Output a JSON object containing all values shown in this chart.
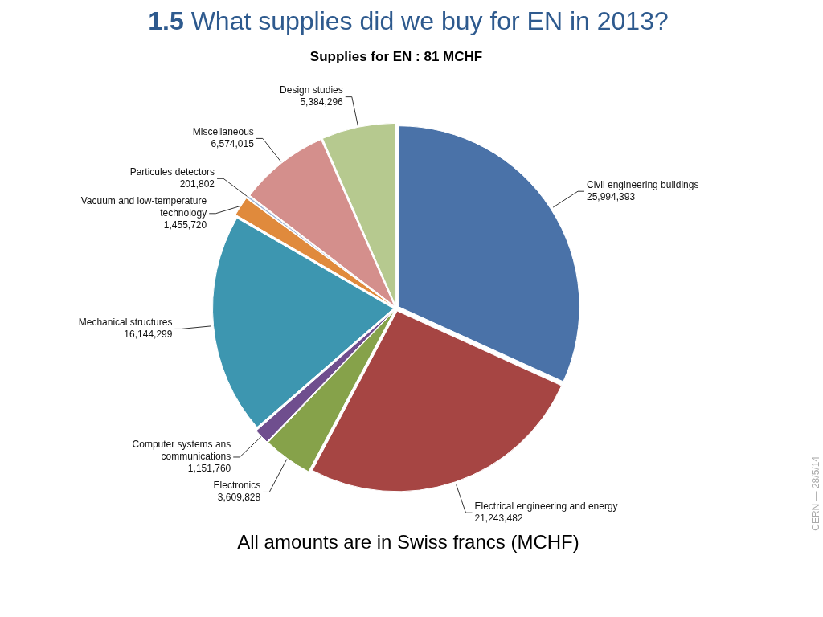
{
  "chart_data": {
    "type": "pie",
    "title": "1.5 What supplies did we buy for EN in 2013?",
    "subtitle": "Supplies for EN : 81 MCHF",
    "categories": [
      "Civil engineering buildings",
      "Electrical engineering and energy",
      "Electronics",
      "Computer systems ans communications",
      "Mechanical structures",
      "Vacuum and low-temperature technology",
      "Particules detectors",
      "Miscellaneous",
      "Design studies"
    ],
    "values": [
      25994393,
      21243482,
      3609828,
      1151760,
      16144299,
      1455720,
      201802,
      6574015,
      5384296
    ],
    "colors": [
      "#4a72a8",
      "#a64543",
      "#86a24a",
      "#6f4e8e",
      "#3d96b0",
      "#e08a3c",
      "#9db4d6",
      "#d48f8c",
      "#b6c98f"
    ],
    "value_labels": [
      "25,994,393",
      "21,243,482",
      "3,609,828",
      "1,151,760",
      "16,144,299",
      "1,455,720",
      "201,802",
      "6,574,015",
      "5,384,296"
    ],
    "legend": false,
    "annotations": [
      "All amounts are in Swiss francs (MCHF)",
      "CERN — 28/5/14"
    ]
  }
}
